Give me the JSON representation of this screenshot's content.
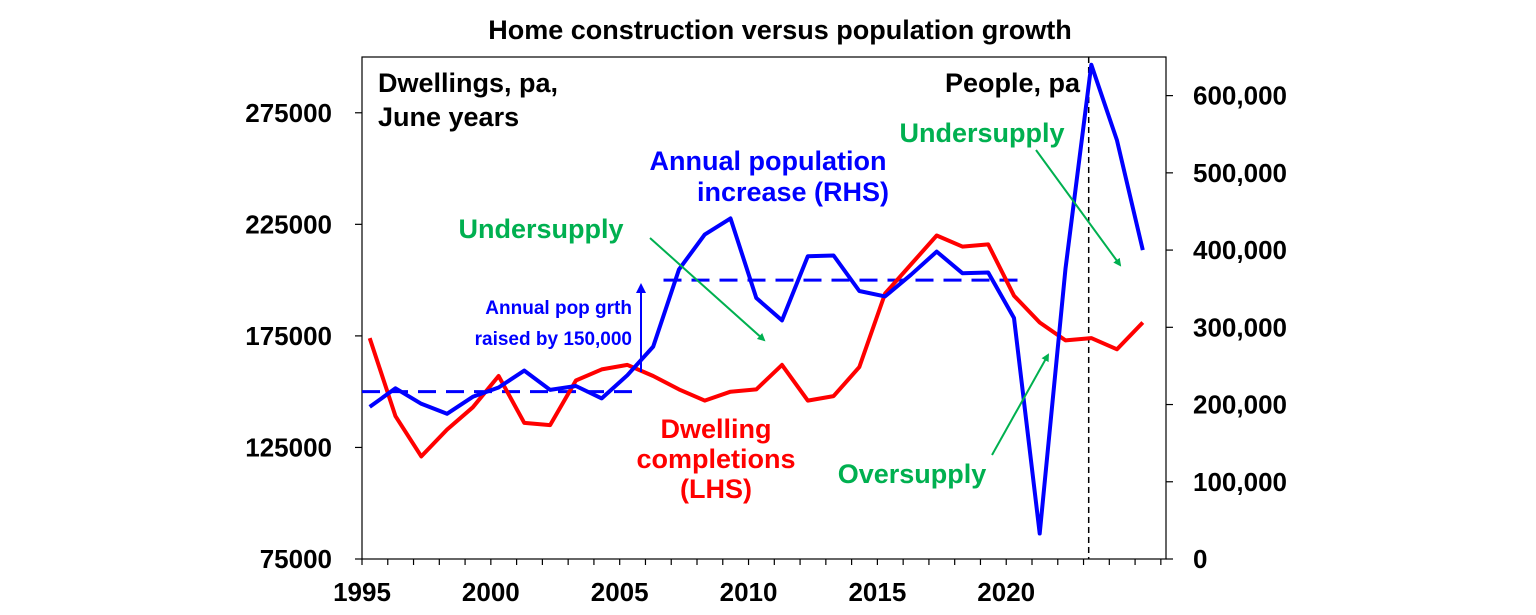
{
  "chart_data": {
    "type": "line",
    "title": "Home construction versus population growth",
    "x_ticks": [
      "1995",
      "2000",
      "2005",
      "2010",
      "2015",
      "2020"
    ],
    "xlim": [
      1995,
      2026.2
    ],
    "y_left": {
      "label": "Dwellings, pa, June years",
      "ylim": [
        75000,
        300000
      ],
      "ticks": [
        "75000",
        "125000",
        "175000",
        "225000",
        "275000"
      ]
    },
    "y_right": {
      "label": "People, pa",
      "ylim": [
        0,
        650000
      ],
      "ticks": [
        "0",
        "100,000",
        "200,000",
        "300,000",
        "400,000",
        "500,000",
        "600,000"
      ]
    },
    "colors": {
      "dwellings": "#ff0000",
      "population": "#0000ff",
      "annotation": "#00b050"
    },
    "series": [
      {
        "name": "Dwelling completions (LHS)",
        "axis": "left",
        "x": [
          1995.3,
          1996.3,
          1997.3,
          1998.3,
          1999.3,
          2000.3,
          2001.3,
          2002.3,
          2003.3,
          2004.3,
          2005.3,
          2006.3,
          2007.3,
          2008.3,
          2009.3,
          2010.3,
          2011.3,
          2012.3,
          2013.3,
          2014.3,
          2015.3,
          2016.3,
          2017.3,
          2018.3,
          2019.3,
          2020.3,
          2021.3,
          2022.3,
          2023.3,
          2024.3,
          2025.3
        ],
        "values": [
          174000,
          139000,
          121000,
          133000,
          143000,
          157000,
          136000,
          135000,
          155000,
          160000,
          162000,
          157000,
          151000,
          146000,
          150000,
          151000,
          162000,
          146000,
          148000,
          161000,
          194000,
          207000,
          220000,
          215000,
          216000,
          193000,
          181000,
          173000,
          174000,
          169000,
          181000
        ]
      },
      {
        "name": "Annual population increase (RHS)",
        "axis": "right",
        "x": [
          1995.3,
          1996.3,
          1997.3,
          1998.3,
          1999.3,
          2000.3,
          2001.3,
          2002.3,
          2003.3,
          2004.3,
          2005.3,
          2006.3,
          2007.3,
          2008.3,
          2009.3,
          2010.3,
          2011.3,
          2012.3,
          2013.3,
          2014.3,
          2015.3,
          2016.3,
          2017.3,
          2018.3,
          2019.3,
          2020.3,
          2021.3,
          2022.3,
          2023.3,
          2024.3,
          2025.3
        ],
        "values": [
          197000,
          221000,
          201000,
          188000,
          210000,
          222000,
          244000,
          219000,
          224000,
          208000,
          238000,
          275000,
          375000,
          420000,
          441000,
          338000,
          309000,
          392000,
          393000,
          347000,
          340000,
          368000,
          398000,
          370000,
          371000,
          312000,
          33000,
          376000,
          640000,
          542000,
          400000
        ]
      }
    ],
    "reference_lines": [
      {
        "axis": "left",
        "x": [
          1995.0,
          2005.6
        ],
        "value": 150000
      },
      {
        "axis": "left",
        "x": [
          2006.7,
          2020.5
        ],
        "value": 200000
      }
    ],
    "vertical_line_x": 2023.2,
    "annotations": {
      "left_axis_label_lines": [
        "Dwellings, pa,",
        "June years"
      ],
      "right_axis_label": "People, pa",
      "population_label_lines": [
        "Annual population",
        "increase (RHS)"
      ],
      "dwelling_label_lines": [
        "Dwelling",
        "completions",
        "(LHS)"
      ],
      "step_label_lines": [
        "Annual pop grth",
        "raised by 150,000"
      ],
      "undersupply_1": "Undersupply",
      "undersupply_2": "Undersupply",
      "oversupply": "Oversupply"
    }
  }
}
